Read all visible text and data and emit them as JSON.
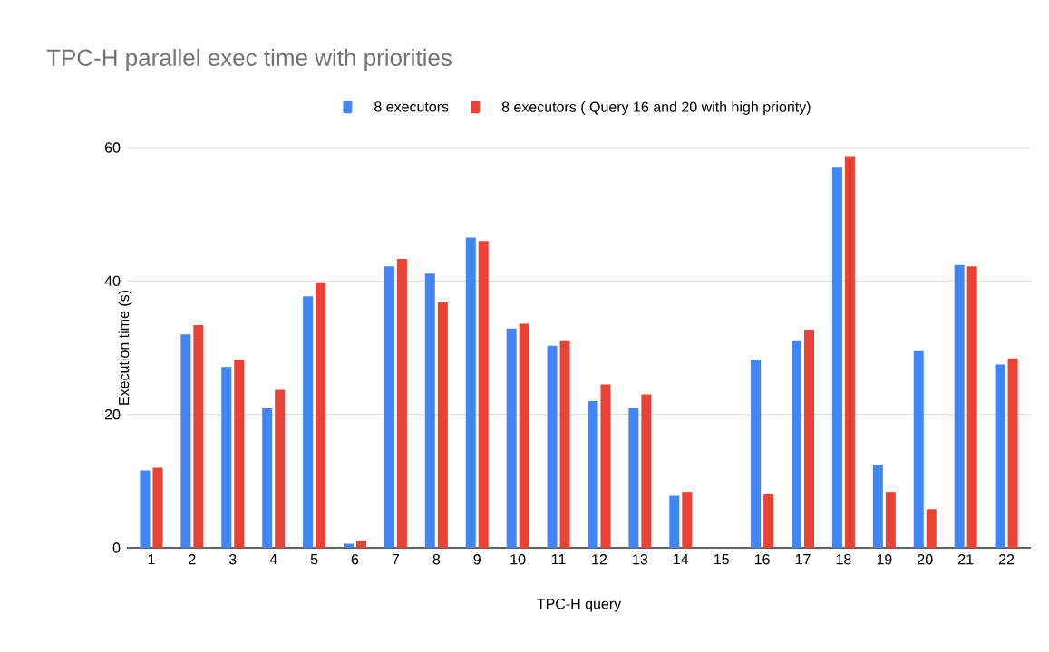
{
  "chart_data": {
    "type": "bar",
    "title": "TPC-H parallel exec time with priorities",
    "xlabel": "TPC-H query",
    "ylabel": "Execution time (s)",
    "categories": [
      "1",
      "2",
      "3",
      "4",
      "5",
      "6",
      "7",
      "8",
      "9",
      "10",
      "11",
      "12",
      "13",
      "14",
      "15",
      "16",
      "17",
      "18",
      "19",
      "20",
      "21",
      "22"
    ],
    "series": [
      {
        "name": "8 executors",
        "color": "#4285f4",
        "values": [
          11.6,
          32.0,
          27.1,
          20.9,
          37.7,
          0.6,
          42.2,
          41.1,
          46.5,
          32.9,
          30.3,
          22.0,
          20.9,
          7.8,
          null,
          28.2,
          31.0,
          57.1,
          12.5,
          29.5,
          42.4,
          27.5
        ]
      },
      {
        "name": "8 executors ( Query 16 and 20 with high priority)",
        "color": "#ea4335",
        "values": [
          12.0,
          33.4,
          28.2,
          23.7,
          39.8,
          1.1,
          43.3,
          36.8,
          46.0,
          33.6,
          31.0,
          24.5,
          23.0,
          8.4,
          null,
          8.0,
          32.7,
          58.7,
          8.4,
          5.8,
          42.2,
          28.4
        ]
      }
    ],
    "ylim": [
      0,
      60
    ],
    "yticks": [
      0,
      20,
      40,
      60
    ],
    "grid": "y",
    "legend": "top"
  }
}
